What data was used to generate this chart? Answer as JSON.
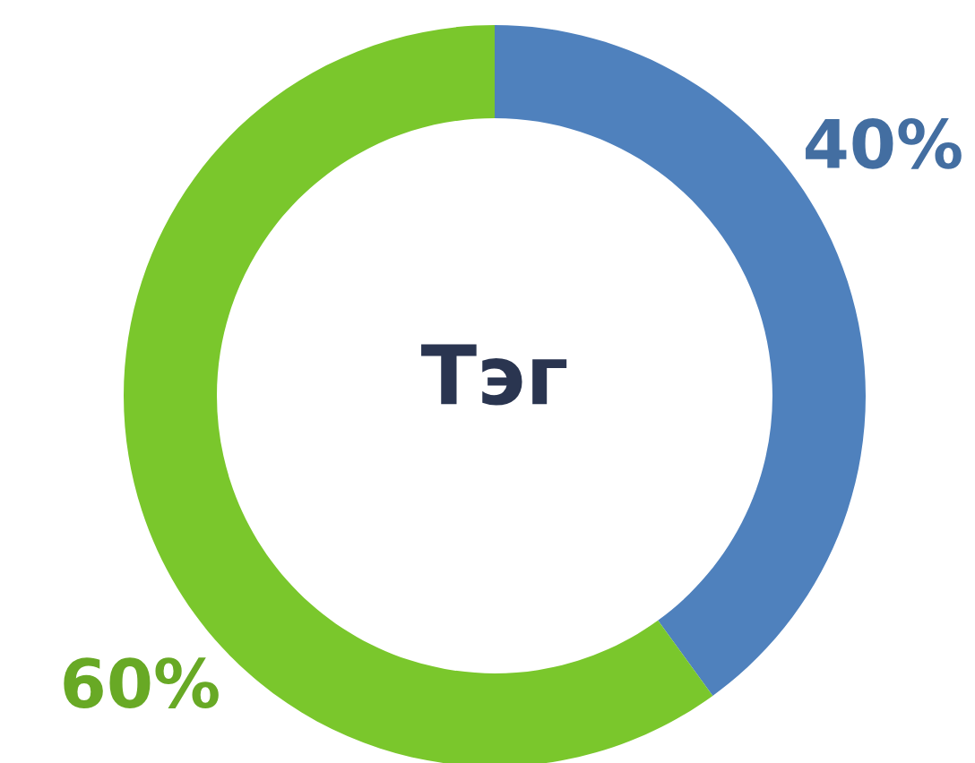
{
  "chart_data": {
    "type": "donut",
    "title": "Тэг",
    "categories": [
      null,
      null
    ],
    "values": [
      40,
      60
    ],
    "colors": [
      "#4f81bd",
      "#7ac72c"
    ],
    "value_labels": [
      "40%",
      "60%"
    ]
  }
}
